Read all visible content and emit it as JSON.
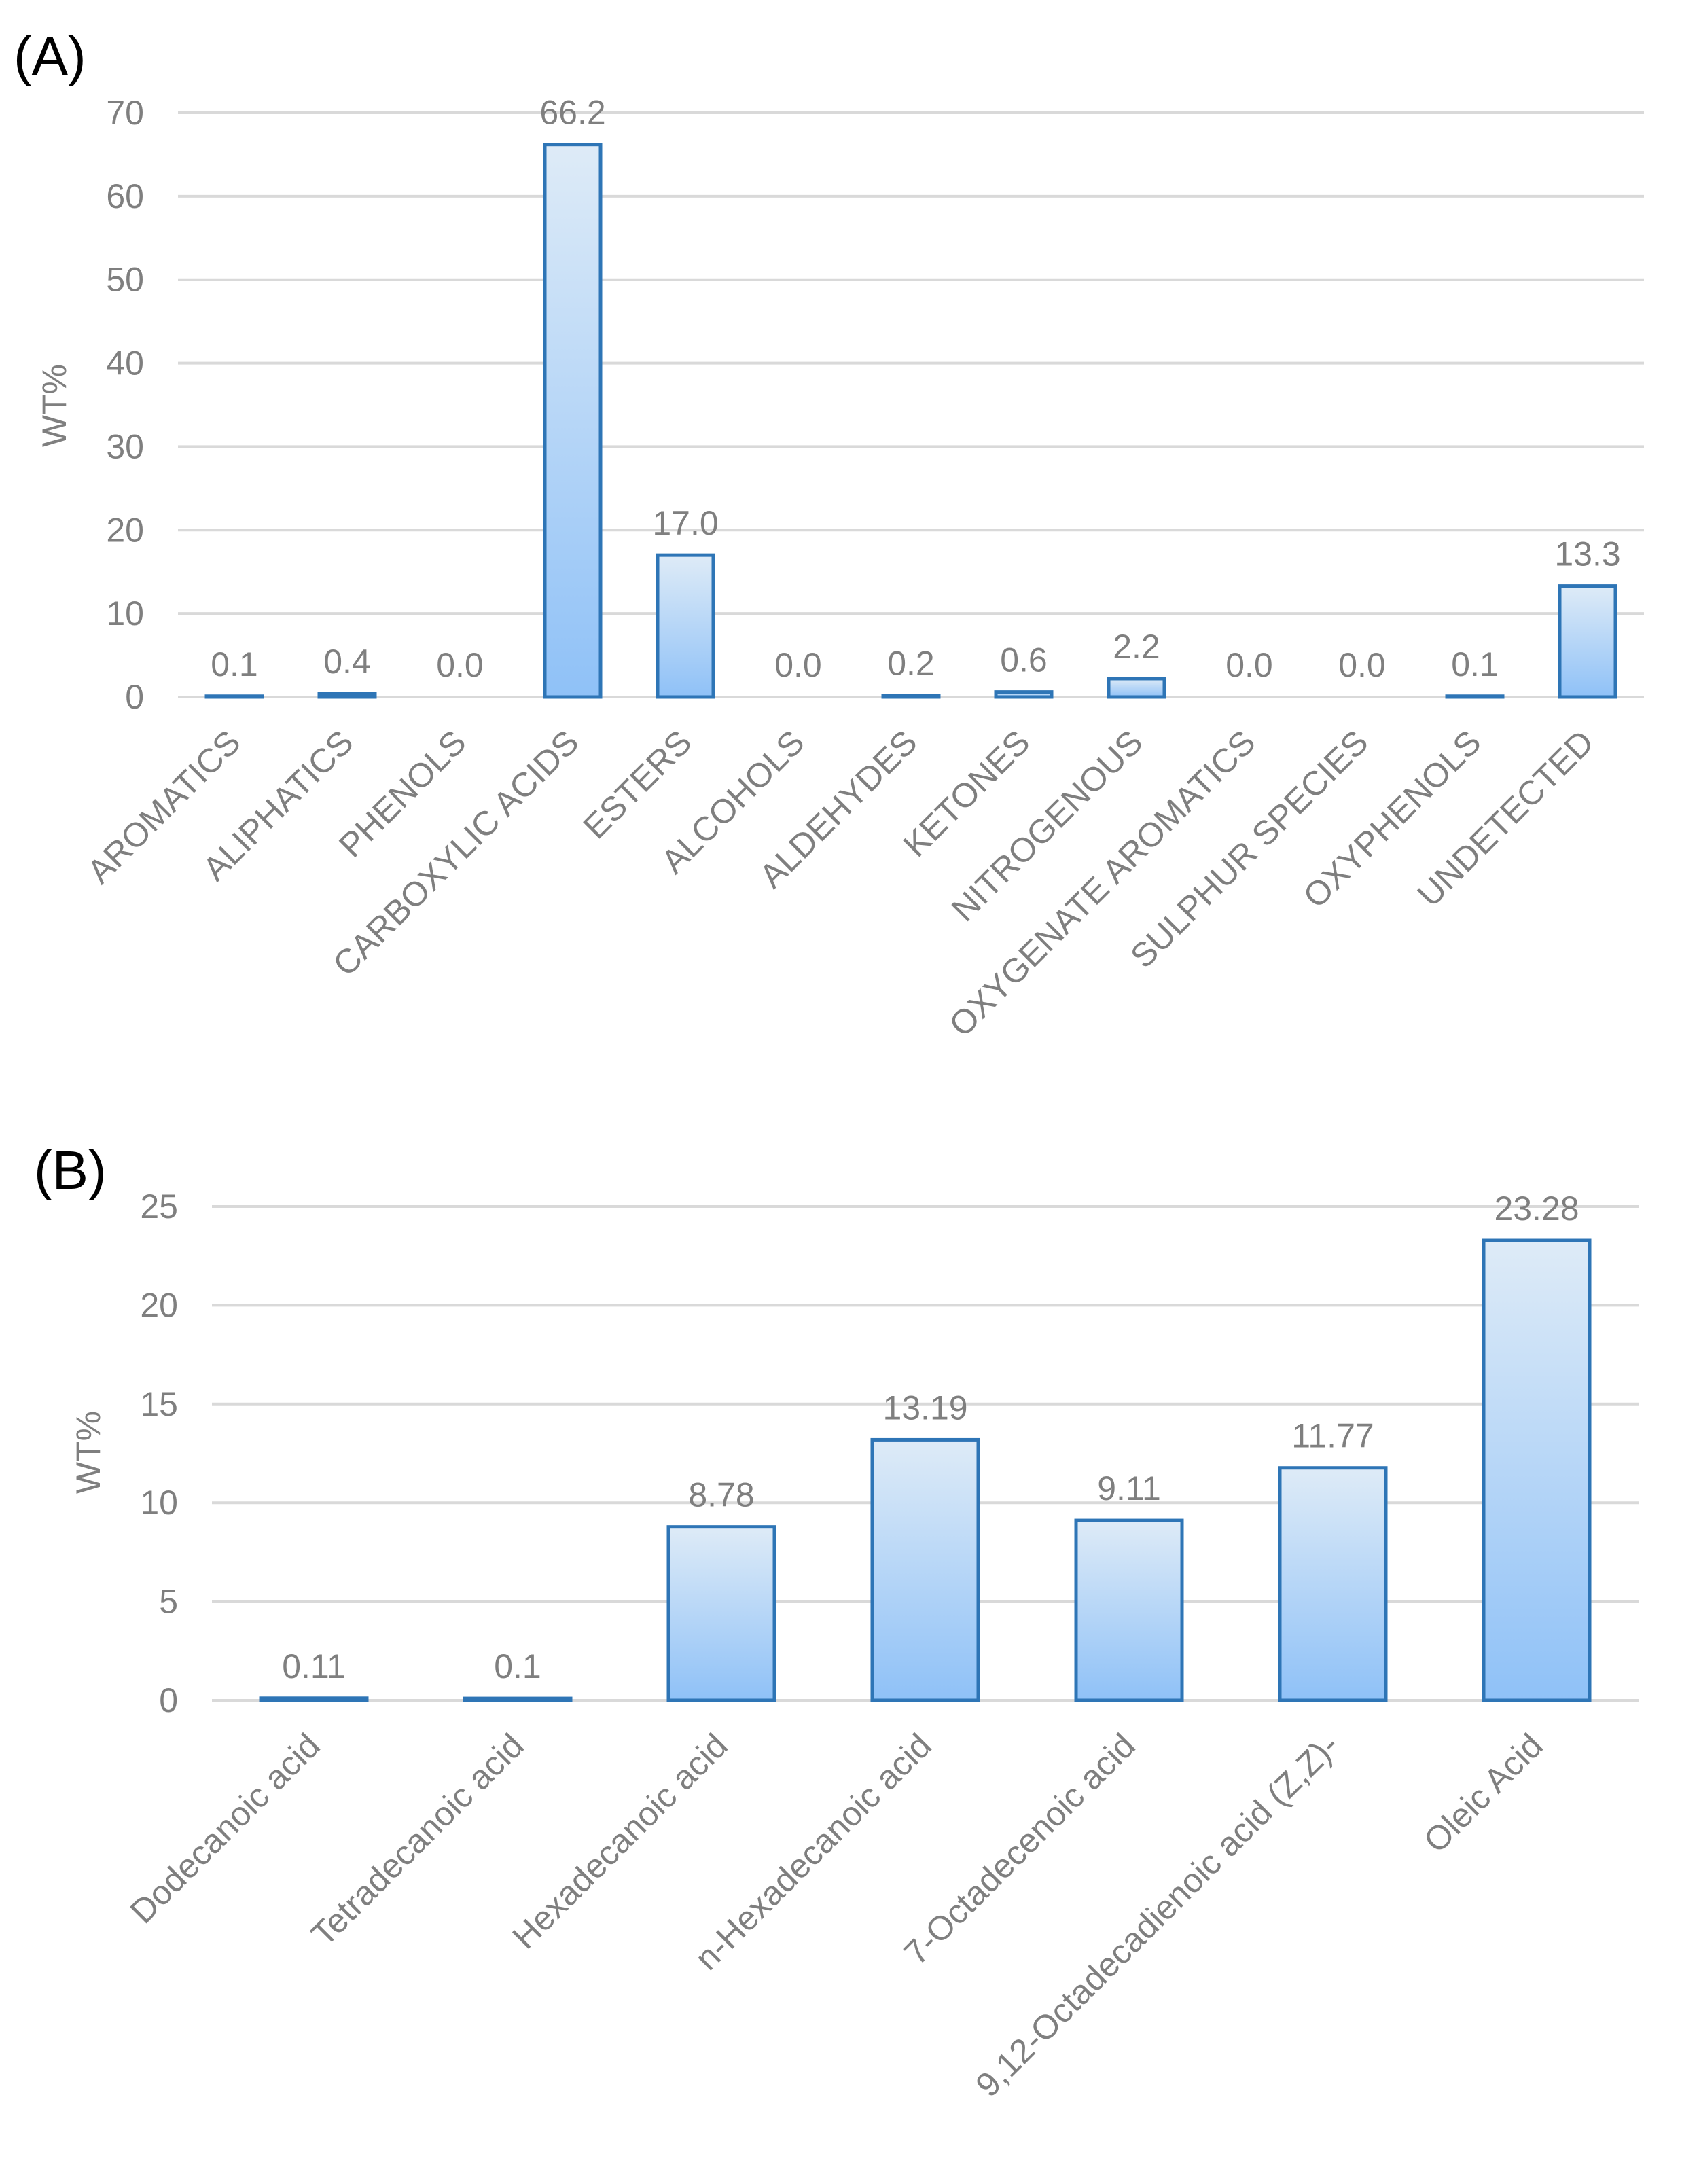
{
  "colors": {
    "bar_stroke": "#2e75b6",
    "bar_fill_top": "#deebf7",
    "bar_fill_bottom": "#8fc1f7",
    "grid": "#d9d9d9",
    "text": "#7f7f7f"
  },
  "chart_data": [
    {
      "panel_label": "(A)",
      "type": "bar",
      "ylabel": "WT%",
      "xlabel": "",
      "ylim": [
        0,
        70
      ],
      "yticks": [
        "0",
        "10",
        "20",
        "30",
        "40",
        "50",
        "60",
        "70"
      ],
      "categories": [
        "AROMATICS",
        "ALIPHATICS",
        "PHENOLS",
        "CARBOXYLIC ACIDS",
        "ESTERS",
        "ALCOHOLS",
        "ALDEHYDES",
        "KETONES",
        "NITROGENOUS",
        "OXYGENATE AROMATICS",
        "SULPHUR SPECIES",
        "OXYPHENOLS",
        "UNDETECTED"
      ],
      "values": [
        0.1,
        0.4,
        0.0,
        66.2,
        17.0,
        0.0,
        0.2,
        0.6,
        2.2,
        0.0,
        0.0,
        0.1,
        13.3
      ],
      "data_labels": [
        "0.1",
        "0.4",
        "0.0",
        "66.2",
        "17.0",
        "0.0",
        "0.2",
        "0.6",
        "2.2",
        "0.0",
        "0.0",
        "0.1",
        "13.3"
      ]
    },
    {
      "panel_label": "(B)",
      "type": "bar",
      "ylabel": "WT%",
      "xlabel": "",
      "ylim": [
        0,
        25
      ],
      "yticks": [
        "0",
        "5",
        "10",
        "15",
        "20",
        "25"
      ],
      "categories": [
        "Dodecanoic acid",
        "Tetradecanoic acid",
        "Hexadecanoic acid",
        "n-Hexadecanoic acid",
        "7-Octadecenoic acid",
        "9,12-Octadecadienoic acid (Z,Z)-",
        "Oleic Acid"
      ],
      "values": [
        0.11,
        0.1,
        8.78,
        13.19,
        9.11,
        11.77,
        23.28
      ],
      "data_labels": [
        "0.11",
        "0.1",
        "8.78",
        "13.19",
        "9.11",
        "11.77",
        "23.28"
      ]
    }
  ]
}
